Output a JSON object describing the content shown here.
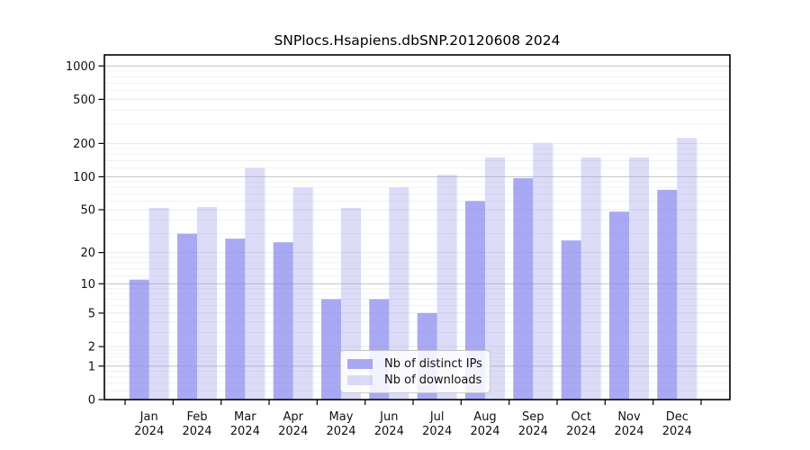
{
  "window": {
    "background": "#ffffff"
  },
  "chart_data": {
    "type": "bar",
    "title": "SNPlocs.Hsapiens.dbSNP.20120608 2024",
    "categories": [
      "Jan",
      "Feb",
      "Mar",
      "Apr",
      "May",
      "Jun",
      "Jul",
      "Aug",
      "Sep",
      "Oct",
      "Nov",
      "Dec"
    ],
    "category_year": "2024",
    "series": [
      {
        "name": "Nb of distinct IPs",
        "values": [
          11,
          30,
          27,
          25,
          7,
          7,
          5,
          60,
          97,
          26,
          48,
          76
        ]
      },
      {
        "name": "Nb of downloads",
        "values": [
          52,
          53,
          120,
          80,
          52,
          80,
          104,
          150,
          200,
          150,
          150,
          225
        ]
      }
    ],
    "yscale": "log1p",
    "yticks": [
      0,
      1,
      2,
      5,
      10,
      20,
      50,
      100,
      200,
      500,
      1000
    ],
    "ylim": [
      0,
      1258
    ],
    "grid": true,
    "legend_position": "lower center",
    "xlabel": "",
    "ylabel": ""
  },
  "colors": {
    "ips_bar_rgba": "rgba(136,136,238,0.72)",
    "downloads_bar_rgba": "rgba(150,150,238,0.33)",
    "ips_bar_on_white": "#a9a9f0",
    "downloads_bar_on_white": "#dcdcf8",
    "grid_major": "#c9c9c9",
    "grid_labeled": "#e8e8e8",
    "grid_minor": "#f0f0f0",
    "frame": "#000000",
    "legend_border": "#c8c8c8"
  }
}
